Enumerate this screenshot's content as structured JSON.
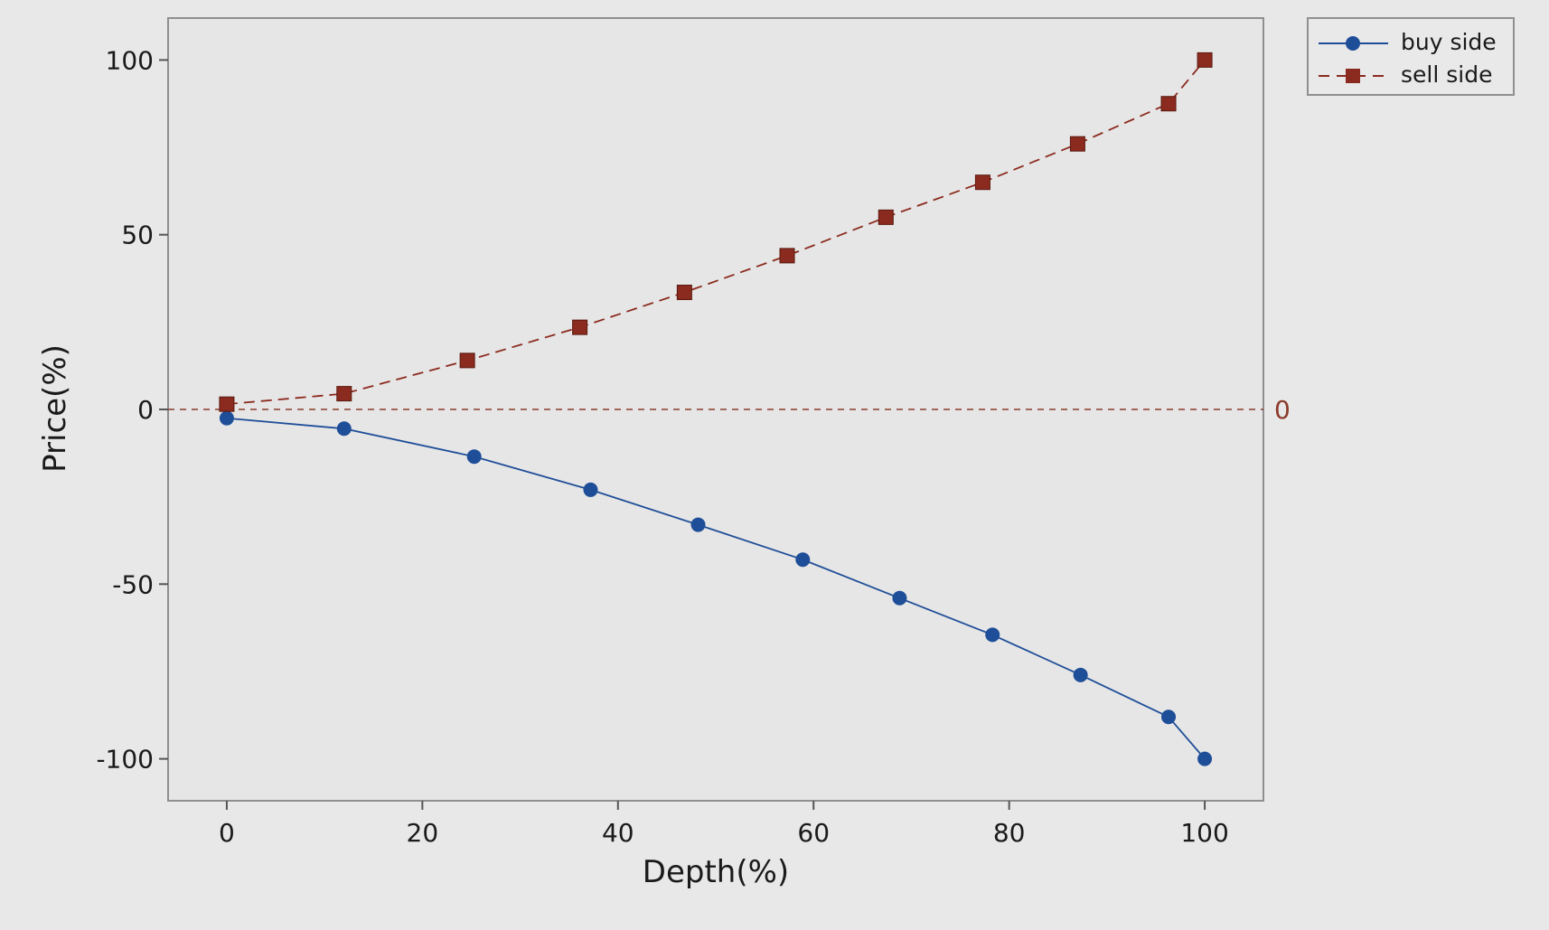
{
  "chart_data": {
    "type": "line",
    "xlabel": "Depth(%)",
    "ylabel": "Price(%)",
    "xlim": [
      -6,
      106
    ],
    "ylim": [
      -112,
      112
    ],
    "x_ticks": [
      0,
      20,
      40,
      60,
      80,
      100
    ],
    "y_ticks": [
      -100,
      -50,
      0,
      50,
      100
    ],
    "x_tick_labels": [
      "0",
      "20",
      "40",
      "60",
      "80",
      "100"
    ],
    "y_tick_labels": [
      "-100",
      "-50",
      "0",
      "50",
      "100"
    ],
    "reference_line": {
      "y": 0,
      "label": "0",
      "style": "dashed",
      "color": "#8b3a2a"
    },
    "grid": false,
    "legend_position": "top-right outside",
    "series": [
      {
        "name": "buy side",
        "marker": "circle",
        "line_style": "solid",
        "color": "#1f4e98",
        "x": [
          0,
          12,
          25.3,
          37.2,
          48.2,
          58.9,
          68.8,
          78.3,
          87.3,
          96.3,
          100
        ],
        "y": [
          -2.5,
          -5.5,
          -13.5,
          -23,
          -33,
          -43,
          -54,
          -64.5,
          -76,
          -88,
          -100
        ]
      },
      {
        "name": "sell side",
        "marker": "square",
        "line_style": "dashed",
        "color": "#8b2a1e",
        "x": [
          0,
          12,
          24.6,
          36.1,
          46.8,
          57.3,
          67.4,
          77.3,
          87,
          96.3,
          100
        ],
        "y": [
          1.5,
          4.5,
          14,
          23.5,
          33.5,
          44,
          55,
          65,
          76,
          87.5,
          100
        ]
      }
    ]
  }
}
